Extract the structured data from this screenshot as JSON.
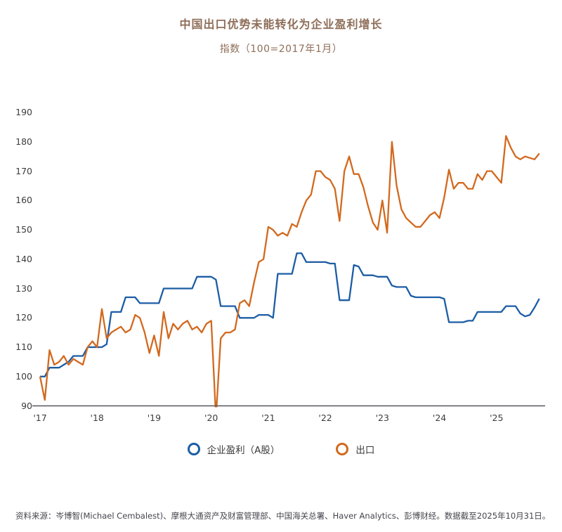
{
  "header": {
    "title": "中国出口优势未能转化为企业盈利增长",
    "subtitle": "指数（100=2017年1月）"
  },
  "chart_data": {
    "type": "line",
    "title": "中国出口优势未能转化为企业盈利增长",
    "subtitle": "指数（100=2017年1月）",
    "x_frequency": "monthly",
    "x_start": "2017-01",
    "x_end": "2025-10",
    "x_tick_labels": [
      "'17",
      "'18",
      "'19",
      "'20",
      "'21",
      "'22",
      "'23",
      "'24",
      "'25"
    ],
    "y_ticks": [
      90,
      100,
      110,
      120,
      130,
      140,
      150,
      160,
      170,
      180,
      190
    ],
    "y_range": [
      90,
      190
    ],
    "grid": false,
    "legend_position": "bottom",
    "axis_color": "#57575b",
    "series": [
      {
        "name": "企业盈利（A股）",
        "key": "profit-series",
        "color": "#1c5da5",
        "values": [
          100,
          100,
          103,
          103,
          103,
          104,
          105,
          107,
          107,
          107,
          110,
          110,
          110,
          110,
          111,
          122,
          122,
          122,
          127,
          127,
          127,
          125,
          125,
          125,
          125,
          125,
          130,
          130,
          130,
          130,
          130,
          130,
          130,
          134,
          134,
          134,
          134,
          133,
          124,
          124,
          124,
          124,
          120,
          120,
          120,
          120,
          121,
          121,
          121,
          120,
          135,
          135,
          135,
          135,
          142,
          142,
          139,
          139,
          139,
          139,
          139,
          138.5,
          138.5,
          126,
          126,
          126,
          138,
          137.5,
          134.5,
          134.5,
          134.5,
          134,
          134,
          134,
          131,
          130.5,
          130.5,
          130.5,
          127.5,
          127,
          127,
          127,
          127,
          127,
          127,
          126.5,
          118.5,
          118.5,
          118.5,
          118.5,
          119,
          119,
          122,
          122,
          122,
          122,
          122,
          122,
          124,
          124,
          124,
          121.5,
          120.5,
          121,
          123.5,
          126.5
        ]
      },
      {
        "name": "出口",
        "key": "exports-series",
        "color": "#d2691e",
        "values": [
          100,
          92,
          109,
          104,
          105,
          107,
          104,
          106,
          105,
          104,
          110,
          112,
          110,
          123,
          113,
          115,
          116,
          117,
          115,
          116,
          121,
          120,
          115,
          108,
          114,
          107,
          122,
          113,
          118,
          116,
          118,
          119,
          116,
          117,
          115,
          118,
          119,
          86,
          113,
          115,
          115,
          116,
          125,
          126,
          124,
          132,
          139,
          140,
          151,
          150,
          148,
          149,
          148,
          152,
          151,
          156,
          160,
          162,
          170,
          170,
          168,
          167,
          164,
          153,
          170,
          175,
          169,
          169,
          164.5,
          158,
          152.5,
          150,
          160,
          149,
          180,
          165,
          157,
          154,
          152.5,
          151,
          151,
          153,
          155,
          156,
          154,
          161,
          170.5,
          164,
          166,
          166,
          164,
          164,
          169,
          167,
          170,
          170,
          168,
          166,
          182,
          178,
          175,
          174,
          175,
          174.5,
          174,
          176
        ]
      }
    ]
  },
  "footer": {
    "source": "资料来源：岑博智(Michael Cembalest)、摩根大通资产及财富管理部、中国海关总署、Haver Analytics、彭博财经。数据截至2025年10月31日。"
  }
}
